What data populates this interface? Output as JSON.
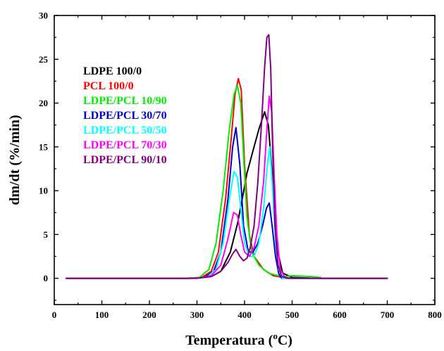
{
  "chart_data": {
    "type": "line",
    "xlabel": "Temperatura (°C)",
    "xlabel_main": "Temperatura (",
    "xlabel_sup": "o",
    "xlabel_end": "C)",
    "ylabel": "dm/dt (%/min)",
    "xlim": [
      0,
      800
    ],
    "ylim": [
      -3,
      30
    ],
    "xticks": [
      0,
      100,
      200,
      300,
      400,
      500,
      600,
      700,
      800
    ],
    "yticks": [
      0,
      5,
      10,
      15,
      20,
      25,
      30
    ],
    "grid": false,
    "legend_position": "upper-left",
    "series": [
      {
        "name": "LDPE 100/0",
        "color": "#000000",
        "x": [
          25,
          100,
          200,
          280,
          310,
          330,
          350,
          370,
          385,
          395,
          405,
          420,
          430,
          442,
          450,
          458,
          465,
          470,
          480,
          500,
          550,
          700
        ],
        "y": [
          0,
          0,
          0,
          0,
          0.1,
          0.2,
          0.8,
          3,
          6.2,
          9,
          12,
          15,
          17,
          19,
          17.5,
          12,
          7,
          3,
          0.6,
          0.1,
          0,
          0
        ]
      },
      {
        "name": "PCL 100/0",
        "color": "#ff0000",
        "x": [
          25,
          100,
          200,
          280,
          310,
          330,
          345,
          360,
          372,
          380,
          387,
          393,
          400,
          410,
          420,
          440,
          460,
          480,
          500,
          700
        ],
        "y": [
          0,
          0,
          0,
          0,
          0.1,
          0.8,
          3,
          9,
          16,
          21,
          22.8,
          21.5,
          13,
          5,
          2.5,
          1,
          0.3,
          0.1,
          0,
          0
        ]
      },
      {
        "name": "LDPE/PCL 10/90",
        "color": "#00ee00",
        "x": [
          25,
          100,
          200,
          280,
          305,
          325,
          340,
          355,
          368,
          378,
          385,
          392,
          398,
          405,
          415,
          430,
          450,
          470,
          485,
          500,
          540,
          560
        ],
        "y": [
          0,
          0,
          0,
          0,
          0.1,
          1,
          4,
          10,
          17,
          21,
          22,
          20,
          14,
          7,
          3,
          1.5,
          0.6,
          0.3,
          0.2,
          0.3,
          0.2,
          0.1
        ]
      },
      {
        "name": "LDPE/PCL 30/70",
        "color": "#0000cc",
        "x": [
          25,
          100,
          200,
          290,
          315,
          335,
          350,
          365,
          375,
          382,
          390,
          398,
          408,
          418,
          428,
          438,
          446,
          452,
          458,
          465,
          472,
          478,
          500,
          700
        ],
        "y": [
          0,
          0,
          0,
          0,
          0.1,
          0.8,
          3,
          9,
          15,
          17.2,
          13,
          6,
          3,
          3,
          4,
          6,
          8,
          8.6,
          6,
          2.5,
          0.5,
          0,
          0,
          0
        ]
      },
      {
        "name": "LDPE/PCL 50/50",
        "color": "#00ffff",
        "x": [
          25,
          100,
          200,
          290,
          320,
          340,
          355,
          368,
          378,
          385,
          392,
          400,
          410,
          420,
          430,
          440,
          448,
          453,
          458,
          465,
          472,
          480,
          500,
          700
        ],
        "y": [
          0,
          0,
          0,
          0,
          0.1,
          1,
          4,
          9,
          12.2,
          11.5,
          8,
          4,
          2.5,
          2.5,
          4,
          8,
          13,
          15,
          11,
          4,
          1,
          0,
          0,
          0
        ]
      },
      {
        "name": "LDPE/PCL 70/30",
        "color": "#ff00ff",
        "x": [
          25,
          100,
          200,
          300,
          330,
          350,
          365,
          377,
          385,
          392,
          400,
          410,
          420,
          430,
          440,
          447,
          452,
          457,
          462,
          468,
          475,
          485,
          500,
          700
        ],
        "y": [
          0,
          0,
          0,
          0,
          0.3,
          1.5,
          4.5,
          7.5,
          7.2,
          5,
          3,
          2.5,
          3.5,
          6,
          11,
          17,
          20.8,
          19,
          12,
          5,
          1,
          0.1,
          0,
          0
        ]
      },
      {
        "name": "LDPE/PCL 90/10",
        "color": "#800080",
        "x": [
          25,
          100,
          200,
          300,
          330,
          350,
          365,
          375,
          382,
          390,
          398,
          405,
          412,
          420,
          428,
          436,
          442,
          447,
          451,
          455,
          459,
          464,
          470,
          478,
          490,
          700
        ],
        "y": [
          0,
          0,
          0,
          0,
          0.2,
          0.8,
          1.8,
          2.8,
          3.3,
          2.5,
          2,
          2.3,
          3.5,
          6,
          11,
          18,
          24,
          27.5,
          27.8,
          24,
          15,
          6,
          1.5,
          0.2,
          0,
          0
        ]
      }
    ]
  }
}
